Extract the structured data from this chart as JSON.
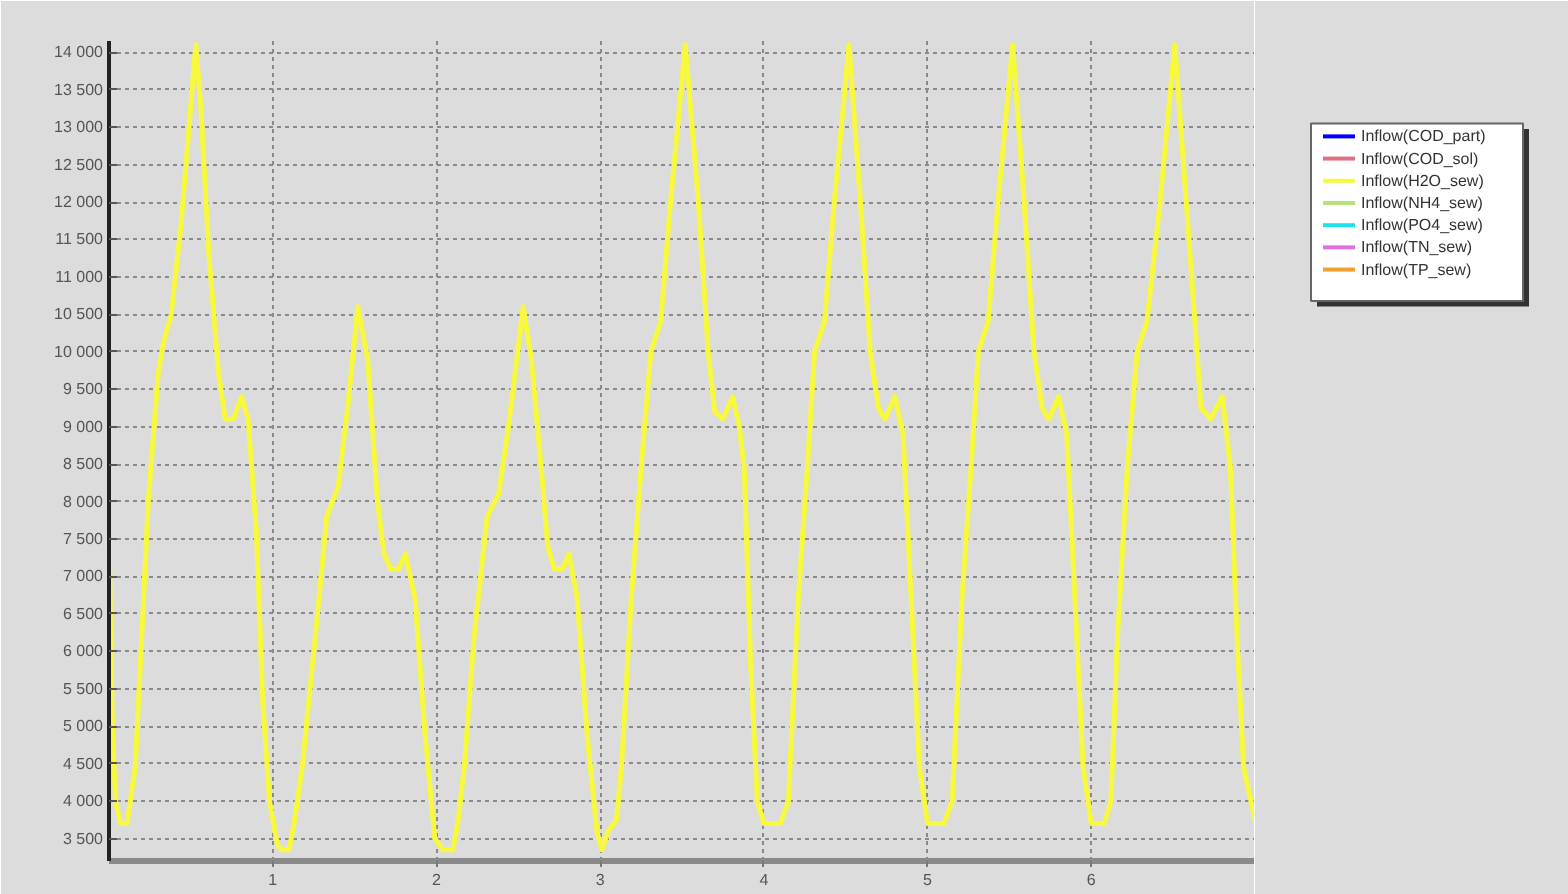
{
  "chart_data": {
    "type": "line",
    "x": [
      0.0,
      0.02,
      0.04,
      0.07,
      0.11,
      0.16,
      0.2,
      0.24,
      0.3,
      0.33,
      0.38,
      0.44,
      0.5,
      0.53,
      0.56,
      0.61,
      0.67,
      0.71,
      0.76,
      0.81,
      0.85,
      0.9,
      0.94,
      0.98,
      1.03,
      1.06,
      1.1,
      1.13,
      1.18,
      1.26,
      1.33,
      1.4,
      1.46,
      1.52,
      1.58,
      1.64,
      1.68,
      1.72,
      1.77,
      1.81,
      1.87,
      1.93,
      1.99,
      2.04,
      2.1,
      2.13,
      2.17,
      2.23,
      2.31,
      2.38,
      2.44,
      2.53,
      2.58,
      2.64,
      2.68,
      2.72,
      2.77,
      2.81,
      2.86,
      2.92,
      2.98,
      3.01,
      3.05,
      3.1,
      3.13,
      3.19,
      3.25,
      3.31,
      3.37,
      3.43,
      3.52,
      3.6,
      3.66,
      3.7,
      3.75,
      3.81,
      3.85,
      3.88,
      3.92,
      3.96,
      4.0,
      4.1,
      4.15,
      4.21,
      4.27,
      4.31,
      4.37,
      4.43,
      4.52,
      4.59,
      4.65,
      4.7,
      4.74,
      4.8,
      4.85,
      4.9,
      4.95,
      5.0,
      5.1,
      5.15,
      5.21,
      5.27,
      5.31,
      5.37,
      5.43,
      5.52,
      5.59,
      5.65,
      5.7,
      5.74,
      5.8,
      5.85,
      5.9,
      5.95,
      6.0,
      6.08,
      6.12,
      6.16,
      6.22,
      6.28,
      6.34,
      6.42,
      6.51,
      6.61,
      6.67,
      6.73,
      6.8,
      6.85,
      6.89,
      6.93,
      7.0
    ],
    "series": [
      {
        "name": "Inflow(COD_part)",
        "color": "#0000ff",
        "values": [
          null,
          null,
          null,
          null,
          null,
          null,
          null,
          null,
          null,
          null,
          null,
          null,
          null,
          null,
          null,
          null,
          null,
          null,
          null,
          null,
          null,
          null,
          null,
          null,
          null,
          null,
          null,
          null,
          null,
          null,
          null,
          null,
          null,
          null,
          null,
          null,
          null,
          null,
          null,
          null,
          null,
          null,
          null,
          null,
          null,
          null,
          null,
          null,
          null,
          null,
          null,
          null,
          null,
          null,
          null,
          null,
          null,
          null,
          null,
          null,
          null,
          null,
          null,
          null,
          null,
          null,
          null,
          null,
          null,
          null,
          null,
          null,
          null,
          null,
          null,
          null,
          null,
          null,
          null,
          null,
          null,
          null,
          null,
          null,
          null,
          null,
          null,
          null,
          null,
          null,
          null,
          null,
          null,
          null,
          null,
          null,
          null,
          null,
          null,
          null,
          null,
          null,
          null,
          null,
          null,
          null,
          null,
          null,
          null,
          null,
          null,
          null,
          null,
          null,
          null,
          null,
          null,
          null,
          null,
          null,
          null,
          null,
          null,
          null,
          null,
          null,
          null,
          null,
          null,
          null,
          null
        ]
      },
      {
        "name": "Inflow(COD_sol)",
        "color": "#e07080",
        "values": [
          null,
          null,
          null,
          null,
          null,
          null,
          null,
          null,
          null,
          null,
          null,
          null,
          null,
          null,
          null,
          null,
          null,
          null,
          null,
          null,
          null,
          null,
          null,
          null,
          null,
          null,
          null,
          null,
          null,
          null,
          null,
          null,
          null,
          null,
          null,
          null,
          null,
          null,
          null,
          null,
          null,
          null,
          null,
          null,
          null,
          null,
          null,
          null,
          null,
          null,
          null,
          null,
          null,
          null,
          null,
          null,
          null,
          null,
          null,
          null,
          null,
          null,
          null,
          null,
          null,
          null,
          null,
          null,
          null,
          null,
          null,
          null,
          null,
          null,
          null,
          null,
          null,
          null,
          null,
          null,
          null,
          null,
          null,
          null,
          null,
          null,
          null,
          null,
          null,
          null,
          null,
          null,
          null,
          null,
          null,
          null,
          null,
          null,
          null,
          null,
          null,
          null,
          null,
          null,
          null,
          null,
          null,
          null,
          null,
          null,
          null,
          null,
          null,
          null,
          null,
          null,
          null,
          null,
          null,
          null,
          null,
          null,
          null,
          null,
          null,
          null,
          null,
          null,
          null,
          null,
          null
        ]
      },
      {
        "name": "Inflow(H2O_sew)",
        "color": "#f8f83c",
        "values": [
          7600,
          5000,
          4000,
          3700,
          3700,
          4450,
          6200,
          8000,
          9700,
          10100,
          10500,
          11700,
          13300,
          14100,
          13300,
          11300,
          9700,
          9100,
          9100,
          9400,
          9100,
          7600,
          5300,
          4000,
          3400,
          3350,
          3350,
          3700,
          4450,
          6200,
          7800,
          8200,
          9300,
          10600,
          9900,
          8000,
          7300,
          7100,
          7100,
          7300,
          6700,
          4900,
          3500,
          3350,
          3350,
          3700,
          4450,
          6200,
          7800,
          8100,
          9000,
          10600,
          9900,
          8450,
          7400,
          7100,
          7100,
          7300,
          6700,
          4900,
          3600,
          3350,
          3600,
          3750,
          4450,
          6700,
          8450,
          10000,
          10400,
          12000,
          14100,
          12000,
          10000,
          9200,
          9100,
          9400,
          9000,
          8450,
          5800,
          4000,
          3700,
          3700,
          4000,
          6700,
          8600,
          10000,
          10400,
          12000,
          14100,
          12000,
          10000,
          9250,
          9100,
          9400,
          8900,
          6700,
          4450,
          3700,
          3700,
          4000,
          6700,
          8600,
          10000,
          10400,
          12000,
          14100,
          12000,
          10000,
          9250,
          9100,
          9400,
          8900,
          6700,
          4450,
          3700,
          3700,
          4000,
          6200,
          8450,
          10000,
          10400,
          12000,
          14100,
          11100,
          9250,
          9100,
          9400,
          8450,
          6200,
          4450,
          3750
        ]
      },
      {
        "name": "Inflow(NH4_sew)",
        "color": "#b8e07a",
        "values": [
          null,
          null,
          null,
          null,
          null,
          null,
          null,
          null,
          null,
          null,
          null,
          null,
          null,
          null,
          null,
          null,
          null,
          null,
          null,
          null,
          null,
          null,
          null,
          null,
          null,
          null,
          null,
          null,
          null,
          null,
          null,
          null,
          null,
          null,
          null,
          null,
          null,
          null,
          null,
          null,
          null,
          null,
          null,
          null,
          null,
          null,
          null,
          null,
          null,
          null,
          null,
          null,
          null,
          null,
          null,
          null,
          null,
          null,
          null,
          null,
          null,
          null,
          null,
          null,
          null,
          null,
          null,
          null,
          null,
          null,
          null,
          null,
          null,
          null,
          null,
          null,
          null,
          null,
          null,
          null,
          null,
          null,
          null,
          null,
          null,
          null,
          null,
          null,
          null,
          null,
          null,
          null,
          null,
          null,
          null,
          null,
          null,
          null,
          null,
          null,
          null,
          null,
          null,
          null,
          null,
          null,
          null,
          null,
          null,
          null,
          null,
          null,
          null,
          null,
          null,
          null,
          null,
          null,
          null,
          null,
          null,
          null,
          null,
          null,
          null,
          null,
          null,
          null,
          null,
          null,
          null
        ]
      },
      {
        "name": "Inflow(PO4_sew)",
        "color": "#20e0f0",
        "values": [
          null,
          null,
          null,
          null,
          null,
          null,
          null,
          null,
          null,
          null,
          null,
          null,
          null,
          null,
          null,
          null,
          null,
          null,
          null,
          null,
          null,
          null,
          null,
          null,
          null,
          null,
          null,
          null,
          null,
          null,
          null,
          null,
          null,
          null,
          null,
          null,
          null,
          null,
          null,
          null,
          null,
          null,
          null,
          null,
          null,
          null,
          null,
          null,
          null,
          null,
          null,
          null,
          null,
          null,
          null,
          null,
          null,
          null,
          null,
          null,
          null,
          null,
          null,
          null,
          null,
          null,
          null,
          null,
          null,
          null,
          null,
          null,
          null,
          null,
          null,
          null,
          null,
          null,
          null,
          null,
          null,
          null,
          null,
          null,
          null,
          null,
          null,
          null,
          null,
          null,
          null,
          null,
          null,
          null,
          null,
          null,
          null,
          null,
          null,
          null,
          null,
          null,
          null,
          null,
          null,
          null,
          null,
          null,
          null,
          null,
          null,
          null,
          null,
          null,
          null,
          null,
          null,
          null,
          null,
          null,
          null,
          null,
          null,
          null,
          null,
          null,
          null,
          null,
          null,
          null,
          null
        ]
      },
      {
        "name": "Inflow(TN_sew)",
        "color": "#e070e0",
        "values": [
          null,
          null,
          null,
          null,
          null,
          null,
          null,
          null,
          null,
          null,
          null,
          null,
          null,
          null,
          null,
          null,
          null,
          null,
          null,
          null,
          null,
          null,
          null,
          null,
          null,
          null,
          null,
          null,
          null,
          null,
          null,
          null,
          null,
          null,
          null,
          null,
          null,
          null,
          null,
          null,
          null,
          null,
          null,
          null,
          null,
          null,
          null,
          null,
          null,
          null,
          null,
          null,
          null,
          null,
          null,
          null,
          null,
          null,
          null,
          null,
          null,
          null,
          null,
          null,
          null,
          null,
          null,
          null,
          null,
          null,
          null,
          null,
          null,
          null,
          null,
          null,
          null,
          null,
          null,
          null,
          null,
          null,
          null,
          null,
          null,
          null,
          null,
          null,
          null,
          null,
          null,
          null,
          null,
          null,
          null,
          null,
          null,
          null,
          null,
          null,
          null,
          null,
          null,
          null,
          null,
          null,
          null,
          null,
          null,
          null,
          null,
          null,
          null,
          null,
          null,
          null,
          null,
          null,
          null,
          null,
          null,
          null,
          null,
          null,
          null,
          null,
          null,
          null,
          null,
          null,
          null
        ]
      },
      {
        "name": "Inflow(TP_sew)",
        "color": "#f0a030",
        "values": [
          null,
          null,
          null,
          null,
          null,
          null,
          null,
          null,
          null,
          null,
          null,
          null,
          null,
          null,
          null,
          null,
          null,
          null,
          null,
          null,
          null,
          null,
          null,
          null,
          null,
          null,
          null,
          null,
          null,
          null,
          null,
          null,
          null,
          null,
          null,
          null,
          null,
          null,
          null,
          null,
          null,
          null,
          null,
          null,
          null,
          null,
          null,
          null,
          null,
          null,
          null,
          null,
          null,
          null,
          null,
          null,
          null,
          null,
          null,
          null,
          null,
          null,
          null,
          null,
          null,
          null,
          null,
          null,
          null,
          null,
          null,
          null,
          null,
          null,
          null,
          null,
          null,
          null,
          null,
          null,
          null,
          null,
          null,
          null,
          null,
          null,
          null,
          null,
          null,
          null,
          null,
          null,
          null,
          null,
          null,
          null,
          null,
          null,
          null,
          null,
          null,
          null,
          null,
          null,
          null,
          null,
          null,
          null,
          null,
          null,
          null,
          null,
          null,
          null,
          null,
          null,
          null,
          null,
          null,
          null,
          null,
          null,
          null,
          null,
          null,
          null,
          null,
          null,
          null,
          null,
          null
        ]
      }
    ],
    "xlim": [
      0,
      7
    ],
    "xticks": [
      1,
      2,
      3,
      4,
      5,
      6
    ],
    "ylim": [
      3200,
      14150
    ],
    "yticks": [
      {
        "value": 3500,
        "label": "3 500"
      },
      {
        "value": 4000,
        "label": "4 000"
      },
      {
        "value": 4500,
        "label": "4 500"
      },
      {
        "value": 5000,
        "label": "5 000"
      },
      {
        "value": 5500,
        "label": "5 500"
      },
      {
        "value": 6000,
        "label": "6 000"
      },
      {
        "value": 6500,
        "label": "6 500"
      },
      {
        "value": 7000,
        "label": "7 000"
      },
      {
        "value": 7500,
        "label": "7 500"
      },
      {
        "value": 8000,
        "label": "8 000"
      },
      {
        "value": 8500,
        "label": "8 500"
      },
      {
        "value": 9000,
        "label": "9 000"
      },
      {
        "value": 9500,
        "label": "9 500"
      },
      {
        "value": 10000,
        "label": "10 000"
      },
      {
        "value": 10500,
        "label": "10 500"
      },
      {
        "value": 11000,
        "label": "11 000"
      },
      {
        "value": 11500,
        "label": "11 500"
      },
      {
        "value": 12000,
        "label": "12 000"
      },
      {
        "value": 12500,
        "label": "12 500"
      },
      {
        "value": 13000,
        "label": "13 000"
      },
      {
        "value": 13500,
        "label": "13 500"
      },
      {
        "value": 14000,
        "label": "14 000"
      }
    ],
    "grid": true,
    "legend": "top right"
  }
}
